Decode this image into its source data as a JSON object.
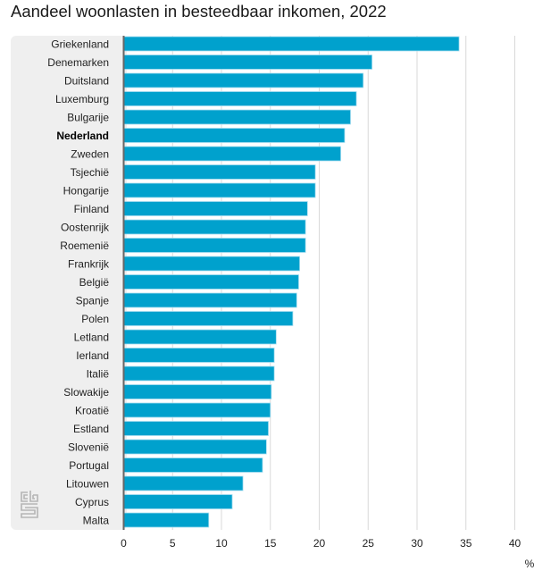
{
  "chart_data": {
    "type": "bar",
    "orientation": "horizontal",
    "title": "Aandeel woonlasten in besteedbaar inkomen, 2022",
    "xlabel": "%",
    "ylabel": "",
    "xlim": [
      0,
      40
    ],
    "xticks": [
      0,
      5,
      10,
      15,
      20,
      25,
      30,
      35,
      40
    ],
    "grid": true,
    "highlighted_category": "Nederland",
    "bar_color": "#00a1cd",
    "categories": [
      "Griekenland",
      "Denemarken",
      "Duitsland",
      "Luxemburg",
      "Bulgarije",
      "Nederland",
      "Zweden",
      "Tsjechië",
      "Hongarije",
      "Finland",
      "Oostenrijk",
      "Roemenië",
      "Frankrijk",
      "België",
      "Spanje",
      "Polen",
      "Letland",
      "Ierland",
      "Italië",
      "Slowakije",
      "Kroatië",
      "Estland",
      "Slovenië",
      "Portugal",
      "Litouwen",
      "Cyprus",
      "Malta"
    ],
    "values": [
      34.3,
      25.4,
      24.5,
      23.8,
      23.2,
      22.6,
      22.2,
      19.6,
      19.6,
      18.8,
      18.6,
      18.6,
      18.0,
      17.9,
      17.7,
      17.3,
      15.6,
      15.4,
      15.4,
      15.1,
      15.0,
      14.8,
      14.6,
      14.2,
      12.2,
      11.1,
      8.7
    ]
  },
  "branding": {
    "logo": "cbs-logo-icon"
  }
}
